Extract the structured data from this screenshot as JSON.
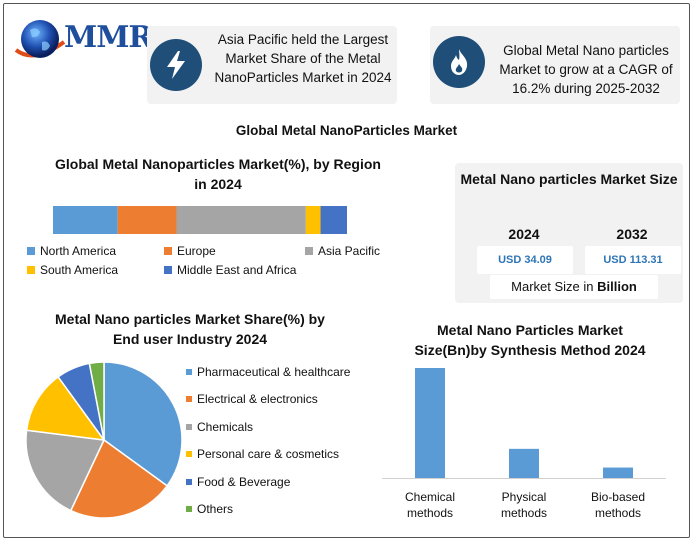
{
  "logo": {
    "text": "MMR"
  },
  "callouts": [
    {
      "text": "Asia Pacific held the Largest Market Share of the Metal NanoParticles Market  in 2024",
      "icon": "lightning-icon"
    },
    {
      "text": "Global Metal  Nano particles Market to grow at a CAGR of 16.2% during 2025-2032",
      "icon": "flame-icon"
    }
  ],
  "main_title": "Global Metal NanoParticles Market",
  "region_section": {
    "title": "Global Metal Nanoparticles Market(%), by Region in 2024"
  },
  "size_box": {
    "title": "Metal Nano particles Market Size",
    "year_2024": "2024",
    "year_2032": "2032",
    "value_2024": "USD 34.09",
    "value_2032": "USD 113.31",
    "footer_prefix": "Market Size in ",
    "footer_bold": "Billion"
  },
  "pie_section": {
    "title": "Metal Nano particles Market Share(%) by End user Industry 2024"
  },
  "bar_section": {
    "title": "Metal Nano Particles Market Size(Bn)by Synthesis Method 2024"
  },
  "colors": {
    "blue": "#5b9bd5",
    "orange": "#ed7d31",
    "gray": "#a5a5a5",
    "yellow": "#ffc000",
    "darkblue": "#4472c4",
    "green": "#70ad47",
    "navy": "#1f4e79"
  },
  "chart_data": [
    {
      "type": "bar",
      "orientation": "horizontal-stacked",
      "title": "Global Metal Nanoparticles Market(%), by Region in 2024",
      "series": [
        {
          "name": "North America",
          "values": [
            22
          ]
        },
        {
          "name": "Europe",
          "values": [
            20
          ]
        },
        {
          "name": "Asia Pacific",
          "values": [
            44
          ]
        },
        {
          "name": "South America",
          "values": [
            5
          ]
        },
        {
          "name": "Middle East and Africa",
          "values": [
            9
          ]
        }
      ],
      "legend": "bottom"
    },
    {
      "type": "pie",
      "title": "Metal Nano particles Market Share(%) by End user Industry 2024",
      "categories": [
        "Pharmaceutical & healthcare",
        "Electrical & electronics",
        "Chemicals",
        "Personal care & cosmetics",
        "Food & Beverage",
        "Others"
      ],
      "values": [
        35,
        22,
        20,
        13,
        7,
        3
      ],
      "legend": "right"
    },
    {
      "type": "bar",
      "title": "Metal Nano Particles Market Size(Bn)by Synthesis Method 2024",
      "categories": [
        "Chemical methods",
        "Physical methods",
        "Bio-based methods"
      ],
      "values": [
        20,
        5.3,
        1.9
      ],
      "ylim": [
        0,
        20
      ],
      "grid": false
    }
  ]
}
